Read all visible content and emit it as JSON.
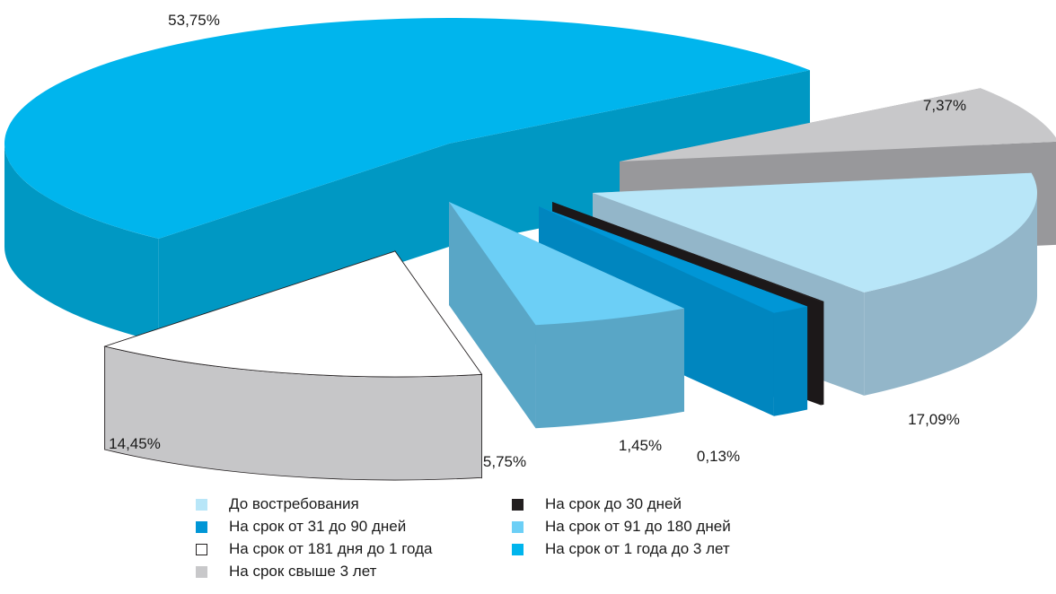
{
  "chart_data": {
    "type": "pie",
    "title": "",
    "labels": [
      "До востребования",
      "На срок до 30 дней",
      "На срок от 31 до 90 дней",
      "На срок от 91  до 180 дней",
      "На срок от 181 дня до 1 года",
      "На срок от 1 года до 3 лет",
      "На срок свыше 3 лет"
    ],
    "values": [
      17.09,
      0.13,
      1.45,
      5.75,
      14.45,
      53.75,
      7.37
    ],
    "value_labels": [
      "17,09%",
      "0,13%",
      "1,45%",
      "5,75%",
      "14,45%",
      "53,75%",
      "7,37%"
    ],
    "colors": [
      "#b8e6f8",
      "#231f20",
      "#0096d6",
      "#6ccff6",
      "#ffffff",
      "#00b5ed",
      "#c8c8ca"
    ],
    "style": "3d-exploded",
    "legend_position": "bottom"
  },
  "legend": {
    "items": [
      {
        "label": "До востребования",
        "color": "#b8e6f8"
      },
      {
        "label": "На срок до 30 дней",
        "color": "#231f20"
      },
      {
        "label": "На срок от 31 до 90 дней",
        "color": "#0096d6"
      },
      {
        "label": "На срок от 91  до 180 дней",
        "color": "#6ccff6"
      },
      {
        "label": "На срок от 181 дня до 1 года",
        "color": "#ffffff"
      },
      {
        "label": "На срок от 1 года до 3 лет",
        "color": "#00b5ed"
      },
      {
        "label": "На срок свыше 3 лет",
        "color": "#c8c8ca"
      }
    ]
  }
}
